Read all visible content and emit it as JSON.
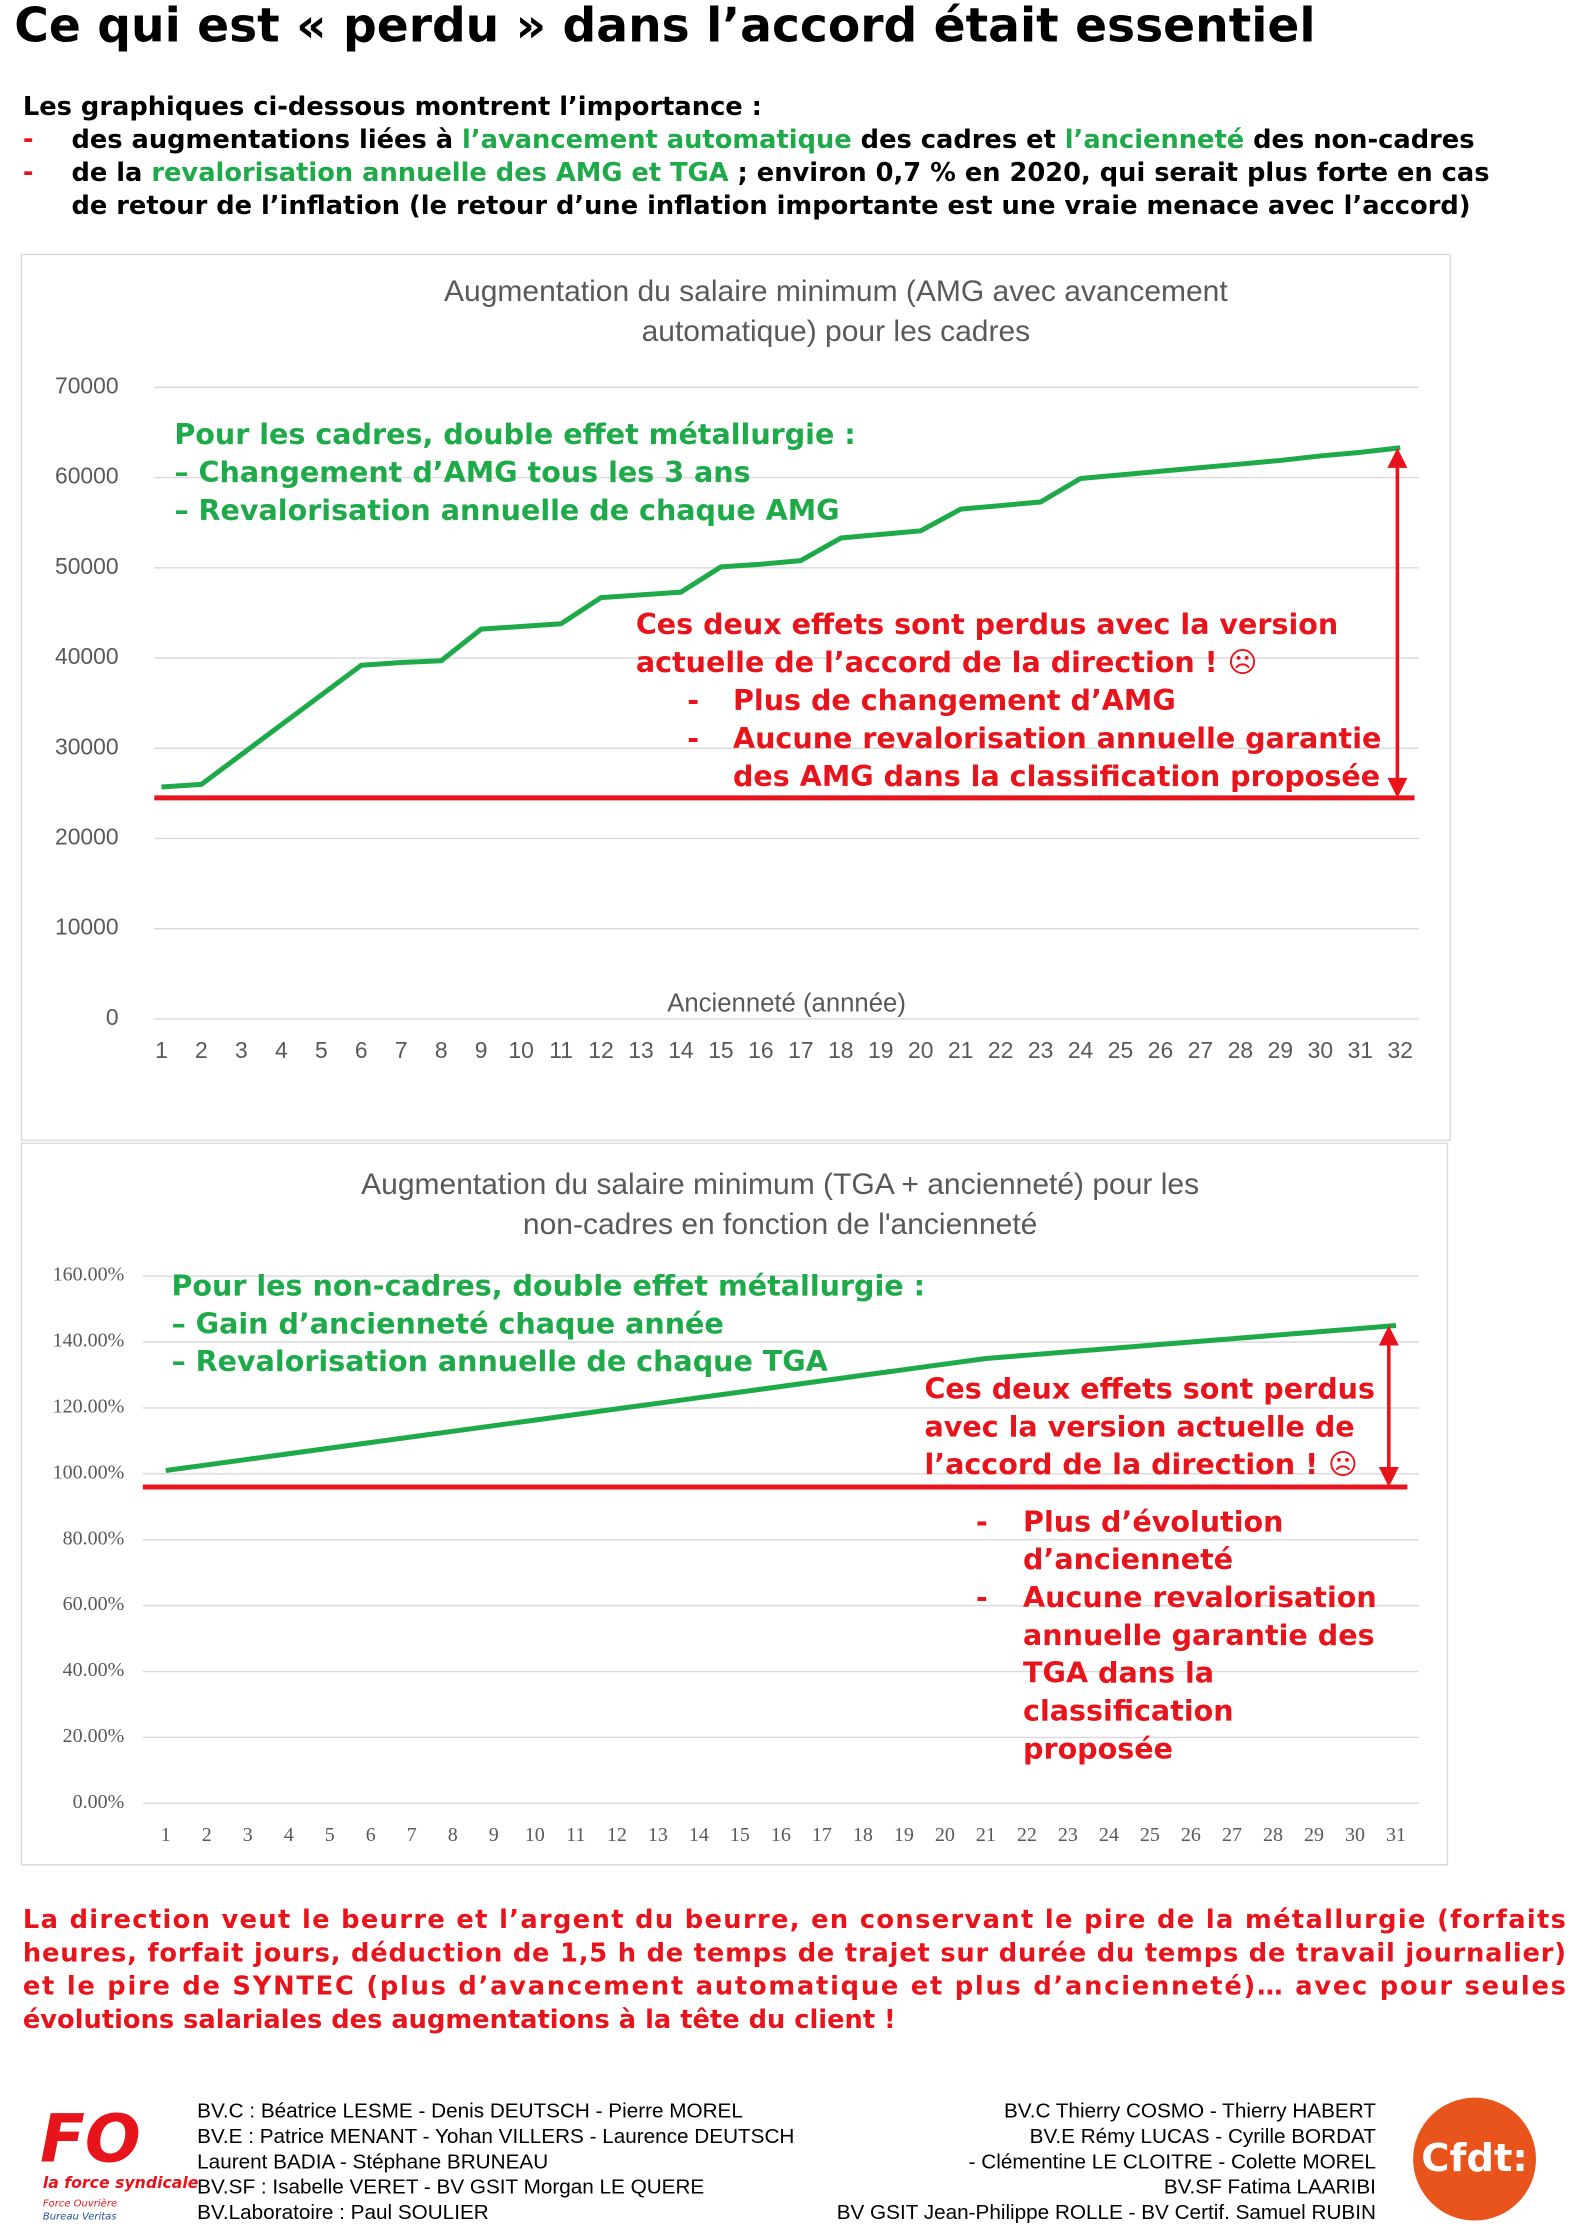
{
  "header": {
    "title": "Ce qui est « perdu » dans l’accord était essentiel"
  },
  "intro": {
    "lead": "Les graphiques ci-dessous montrent l’importance :",
    "lines": [
      {
        "bullet": "-",
        "parts": [
          "des augmentations liées à ",
          "l’avancement automatique",
          " des cadres et ",
          "l’ancienneté",
          " des non-cadres"
        ]
      },
      {
        "bullet": "-",
        "parts": [
          "de la ",
          "revalorisation annuelle des AMG et TGA",
          " ; environ 0,7 % en 2020, qui serait plus forte en cas"
        ]
      },
      {
        "parts": [
          "de retour de l’inflation (le retour d’une inflation importante est une vraie menace avec l’accord)"
        ]
      }
    ]
  },
  "charts": [
    {
      "type": "line",
      "title": [
        "Augmentation du salaire minimum (AMG avec avancement",
        "automatique) pour les cadres"
      ],
      "x_label": "Ancienneté (annnée)",
      "x": [
        1,
        2,
        3,
        4,
        5,
        6,
        7,
        8,
        9,
        10,
        11,
        12,
        13,
        14,
        15,
        16,
        17,
        18,
        19,
        20,
        21,
        22,
        23,
        24,
        25,
        26,
        27,
        28,
        29,
        30,
        31,
        32
      ],
      "series": [
        {
          "color": "#1faa4a",
          "values": [
            25700,
            26000,
            29300,
            32600,
            35900,
            39200,
            39500,
            39700,
            43200,
            43500,
            43800,
            46700,
            47000,
            47300,
            50100,
            50400,
            50800,
            53300,
            53700,
            54100,
            56500,
            56900,
            57300,
            59900,
            60300,
            60700,
            61100,
            61500,
            61900,
            62400,
            62800,
            63300
          ]
        }
      ],
      "ylim": [
        0,
        70000
      ],
      "yticks": [
        0,
        10000,
        20000,
        30000,
        40000,
        50000,
        60000,
        70000
      ],
      "grid": true,
      "baseline": 24500,
      "note_green": [
        "Pour les cadres, double effet métallurgie :",
        "– Changement d’AMG tous les 3 ans",
        "– Revalorisation annuelle de chaque AMG"
      ],
      "note_red": [
        "Ces deux effets sont perdus avec la version",
        "actuelle de l’accord de la direction ! ☹"
      ],
      "note_items": [
        {
          "bullet": "-",
          "lines": [
            "Plus de changement d’AMG"
          ]
        },
        {
          "bullet": "-",
          "lines": [
            "Aucune revalorisation annuelle garantie",
            "des AMG dans la classification proposée"
          ]
        }
      ]
    },
    {
      "type": "line",
      "title": [
        "Augmentation du salaire minimum (TGA + ancienneté) pour les",
        "non-cadres en fonction de l'ancienneté"
      ],
      "x": [
        1,
        2,
        3,
        4,
        5,
        6,
        7,
        8,
        9,
        10,
        11,
        12,
        13,
        14,
        15,
        16,
        17,
        18,
        19,
        20,
        21,
        22,
        23,
        24,
        25,
        26,
        27,
        28,
        29,
        30,
        31
      ],
      "series": [
        {
          "color": "#1faa4a",
          "values": [
            101,
            102.7,
            104.4,
            106.1,
            107.8,
            109.5,
            111.2,
            112.9,
            114.6,
            116.3,
            118,
            119.7,
            121.4,
            123.1,
            124.8,
            126.5,
            128.2,
            129.9,
            131.6,
            133.3,
            135,
            136,
            137,
            138,
            139,
            140,
            141,
            142,
            143,
            144,
            145
          ]
        }
      ],
      "ylim": [
        0,
        160
      ],
      "yticks": [
        {
          "value": 0,
          "label": "0.00%"
        },
        {
          "value": 20,
          "label": "20.00%"
        },
        {
          "value": 40,
          "label": "40.00%"
        },
        {
          "value": 60,
          "label": "60.00%"
        },
        {
          "value": 80,
          "label": "80.00%"
        },
        {
          "value": 100,
          "label": "100.00%"
        },
        {
          "value": 120,
          "label": "120.00%"
        },
        {
          "value": 140,
          "label": "140.00%"
        },
        {
          "value": 160,
          "label": "160.00%"
        }
      ],
      "grid": true,
      "baseline": 96,
      "note_green": [
        "Pour les non-cadres, double effet métallurgie :",
        "– Gain d’ancienneté chaque année",
        "– Revalorisation annuelle de chaque TGA"
      ],
      "note_red": [
        "Ces deux effets sont perdus",
        "avec la version actuelle de",
        "l’accord de la direction ! ☹"
      ],
      "note_items": [
        {
          "bullet": "-",
          "lines": [
            "Plus d’évolution",
            "d’ancienneté"
          ]
        },
        {
          "bullet": "-",
          "lines": [
            "Aucune revalorisation",
            "annuelle garantie des",
            "TGA dans la",
            "classification",
            "proposée"
          ]
        }
      ]
    }
  ],
  "conclusion": [
    "La direction veut le beurre et l’argent du beurre, en conservant le pire de la métallurgie (forfaits",
    "heures, forfait jours, déduction de 1,5 h de temps de trajet sur durée du temps de travail journalier)",
    "et le pire de SYNTEC (plus d’avancement automatique et plus d’ancienneté)… avec pour seules",
    "évolutions salariales des augmentations à la tête du client !"
  ],
  "footer": {
    "logo_left": [
      "FO",
      "la force syndicale",
      "Force Ouvrière",
      "Bureau Veritas"
    ],
    "left": [
      "BV.C : Béatrice LESME - Denis DEUTSCH - Pierre MOREL",
      "BV.E : Patrice MENANT - Yohan VILLERS - Laurence DEUTSCH",
      "Laurent BADIA - Stéphane BRUNEAU",
      "BV.SF : Isabelle VERET - BV GSIT Morgan LE QUERE",
      "BV.Laboratoire :  Paul SOULIER"
    ],
    "right": [
      "BV.C Thierry COSMO - Thierry HABERT",
      "BV.E Rémy LUCAS - Cyrille BORDAT",
      "- Clémentine LE CLOITRE - Colette MOREL",
      "BV.SF Fatima LAARIBI",
      "BV GSIT Jean-Philippe ROLLE - BV Certif. Samuel RUBIN"
    ],
    "logo_right": "Cfdt:"
  }
}
